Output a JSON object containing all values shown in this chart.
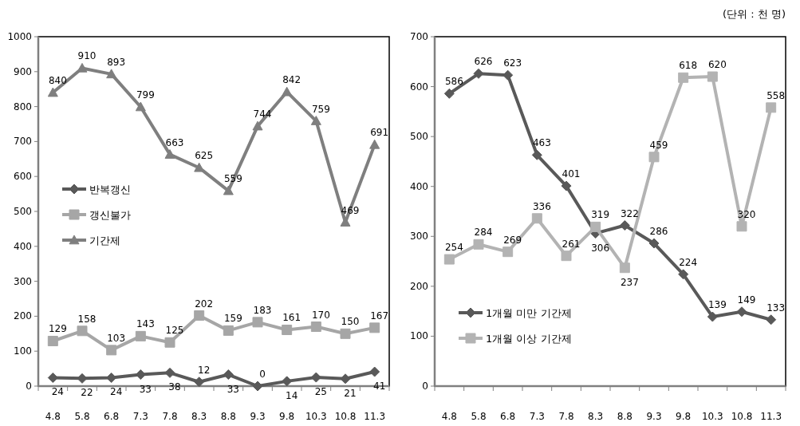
{
  "chart_data": [
    {
      "type": "line",
      "categories": [
        "4.8",
        "5.8",
        "6.8",
        "7.3",
        "7.8",
        "8.3",
        "8.8",
        "9.3",
        "9.8",
        "10.3",
        "10.8",
        "11.3"
      ],
      "ylim": [
        0,
        1000
      ],
      "yticks": [
        0,
        100,
        200,
        300,
        400,
        500,
        600,
        700,
        800,
        900,
        1000
      ],
      "grid": false,
      "legend": "left",
      "data_labels": true,
      "series": [
        {
          "name": "반복갱신",
          "color": "#595959",
          "marker": "diamond",
          "values": [
            24,
            22,
            24,
            33,
            38,
            12,
            33,
            0,
            14,
            25,
            21,
            41
          ]
        },
        {
          "name": "갱신불가",
          "color": "#a6a6a6",
          "marker": "square",
          "values": [
            129,
            158,
            103,
            143,
            125,
            202,
            159,
            183,
            161,
            170,
            150,
            167
          ]
        },
        {
          "name": "기간제",
          "color": "#7f7f7f",
          "marker": "triangle",
          "values": [
            840,
            910,
            893,
            799,
            663,
            625,
            559,
            744,
            842,
            759,
            469,
            691
          ]
        }
      ]
    },
    {
      "type": "line",
      "categories": [
        "4.8",
        "5.8",
        "6.8",
        "7.3",
        "7.8",
        "8.3",
        "8.8",
        "9.3",
        "9.8",
        "10.3",
        "10.8",
        "11.3"
      ],
      "ylim": [
        0,
        700
      ],
      "yticks": [
        0,
        100,
        200,
        300,
        400,
        500,
        600,
        700
      ],
      "grid": false,
      "legend": "bottom left",
      "data_labels": true,
      "annotations": [
        "(단위 : 천 명)"
      ],
      "series": [
        {
          "name": "1개월 미만 기간제",
          "color": "#595959",
          "marker": "diamond",
          "values": [
            586,
            626,
            623,
            463,
            401,
            306,
            322,
            286,
            224,
            139,
            149,
            133
          ]
        },
        {
          "name": "1개월 이상 기간제",
          "color": "#b3b3b3",
          "marker": "square",
          "values": [
            254,
            284,
            269,
            336,
            261,
            319,
            237,
            459,
            618,
            620,
            320,
            558
          ]
        }
      ]
    }
  ]
}
